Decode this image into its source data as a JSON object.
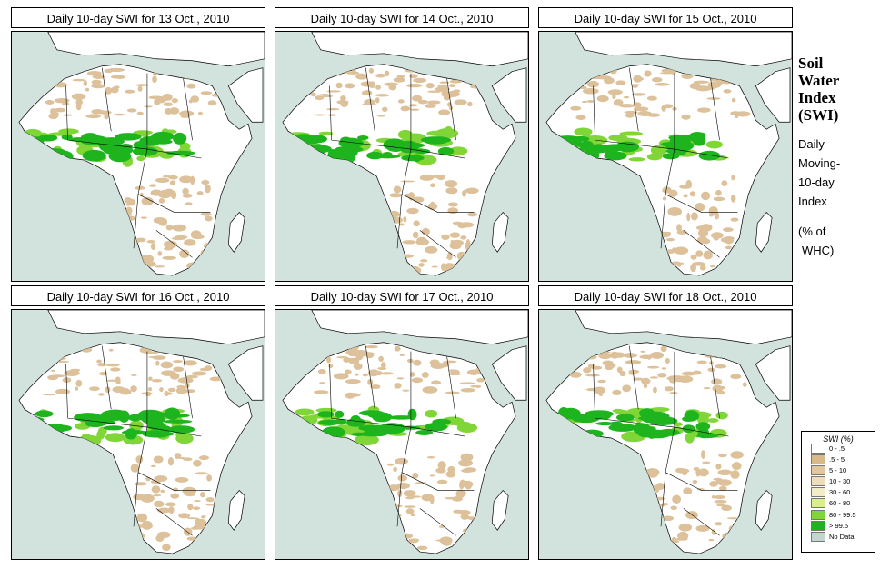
{
  "panels": [
    {
      "title": "Daily 10-day SWI for  13 Oct., 2010"
    },
    {
      "title": "Daily 10-day SWI for  14 Oct., 2010"
    },
    {
      "title": "Daily 10-day SWI for  15 Oct., 2010"
    },
    {
      "title": "Daily 10-day SWI for  16 Oct., 2010"
    },
    {
      "title": "Daily 10-day SWI for  17 Oct., 2010"
    },
    {
      "title": "Daily 10-day SWI for  18 Oct., 2010"
    }
  ],
  "side": {
    "title_line1": "Soil",
    "title_line2": "Water",
    "title_line3": "Index",
    "title_line4": "(SWI)",
    "desc_line1": "Daily",
    "desc_line2": "Moving-",
    "desc_line3": "10-day",
    "desc_line4": "Index",
    "unit_line1": "(% of",
    "unit_line2": "WHC)"
  },
  "legend": {
    "title": "SWI (%)",
    "classes": [
      {
        "label": "0 - .5",
        "color": "#ffffff"
      },
      {
        "label": ".5 - 5",
        "color": "#d8b98a"
      },
      {
        "label": "5 - 10",
        "color": "#e2c69e"
      },
      {
        "label": "10 - 30",
        "color": "#efdcb8"
      },
      {
        "label": "30 - 60",
        "color": "#f4ecc6"
      },
      {
        "label": "60 - 80",
        "color": "#d9f08a"
      },
      {
        "label": "80 - 99.5",
        "color": "#7fd636"
      },
      {
        "label": "> 99.5",
        "color": "#1eb41e"
      },
      {
        "label": "No Data",
        "color": "#c4d6d2"
      }
    ]
  },
  "colors": {
    "ocean": "#d2e2dc",
    "land": "#ffffff",
    "dry": "#dcc19a",
    "moist": "#7fd636",
    "wet": "#1eb41e"
  }
}
